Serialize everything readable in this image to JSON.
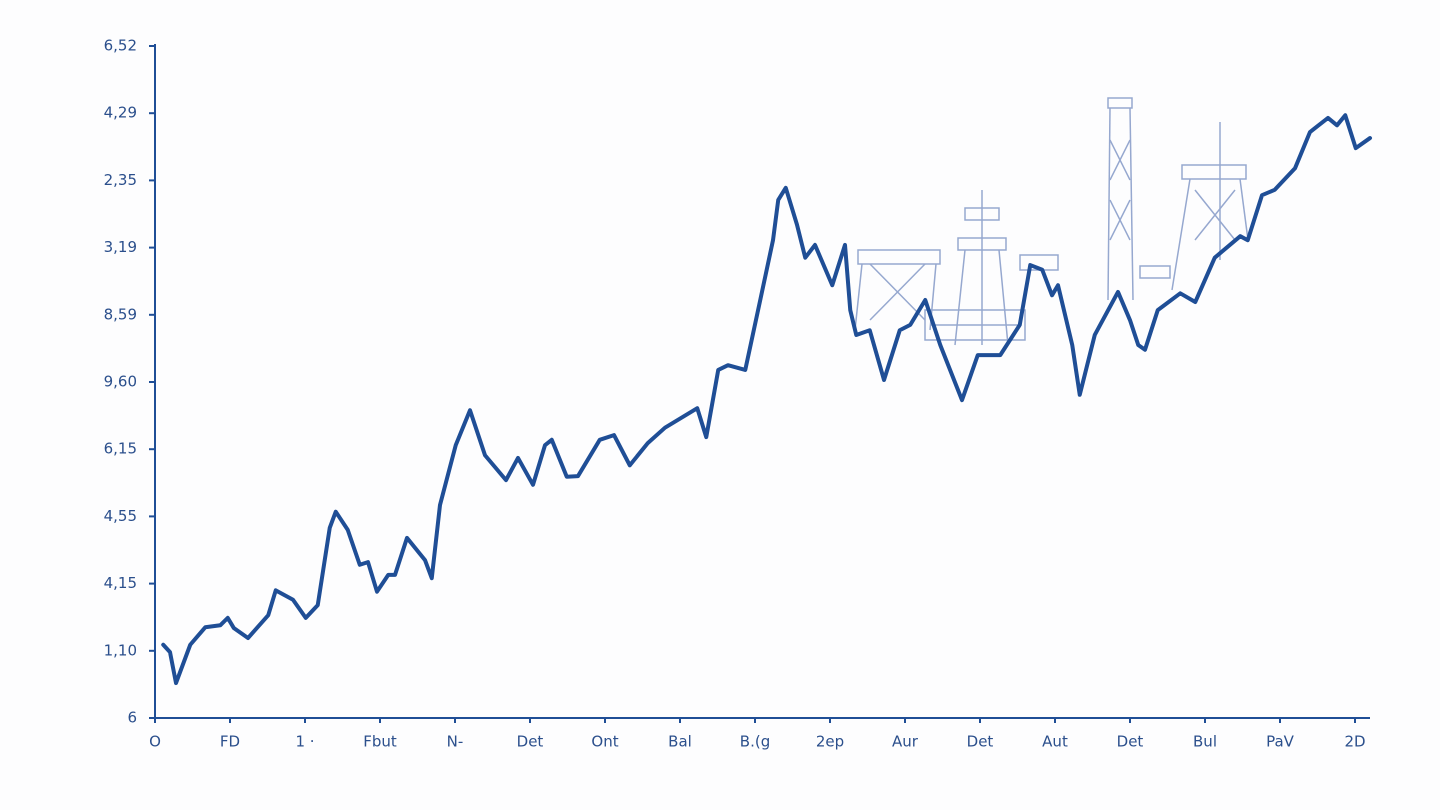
{
  "chart_data": {
    "type": "line",
    "xlim": [
      0,
      16.2
    ],
    "ylim": [
      0,
      10
    ],
    "xticks": [
      {
        "value": 0,
        "label": "O"
      },
      {
        "value": 1,
        "label": "FD"
      },
      {
        "value": 2,
        "label": "1 ·"
      },
      {
        "value": 3,
        "label": "Fbut"
      },
      {
        "value": 4,
        "label": "N-"
      },
      {
        "value": 5,
        "label": "Det"
      },
      {
        "value": 6,
        "label": "Ont"
      },
      {
        "value": 7,
        "label": "Bal"
      },
      {
        "value": 8,
        "label": "B.(g"
      },
      {
        "value": 9,
        "label": "2ep"
      },
      {
        "value": 10,
        "label": "Aur"
      },
      {
        "value": 11,
        "label": "Det"
      },
      {
        "value": 12,
        "label": "Aut"
      },
      {
        "value": 13,
        "label": "Det"
      },
      {
        "value": 14,
        "label": "Bul"
      },
      {
        "value": 15,
        "label": "PaV"
      },
      {
        "value": 16,
        "label": "2D"
      }
    ],
    "yticks": [
      {
        "value": 0,
        "label": "6"
      },
      {
        "value": 1,
        "label": "1,10"
      },
      {
        "value": 2,
        "label": "4,15"
      },
      {
        "value": 3,
        "label": "4,55"
      },
      {
        "value": 4,
        "label": "6,15"
      },
      {
        "value": 5,
        "label": "9,60"
      },
      {
        "value": 6,
        "label": "8,59"
      },
      {
        "value": 7,
        "label": "3,19"
      },
      {
        "value": 8,
        "label": "2,35"
      },
      {
        "value": 9,
        "label": "4,29"
      },
      {
        "value": 10,
        "label": "6,52"
      }
    ],
    "series": [
      {
        "color": "#1f4e96",
        "x": [
          0.11,
          0.2,
          0.28,
          0.47,
          0.67,
          0.87,
          0.97,
          1.05,
          1.24,
          1.51,
          1.61,
          1.84,
          2.01,
          2.17,
          2.33,
          2.41,
          2.57,
          2.73,
          2.84,
          2.96,
          3.11,
          3.2,
          3.36,
          3.6,
          3.69,
          3.8,
          4.01,
          4.2,
          4.4,
          4.68,
          4.84,
          5.04,
          5.2,
          5.29,
          5.49,
          5.64,
          5.93,
          6.12,
          6.33,
          6.57,
          6.8,
          7.23,
          7.35,
          7.51,
          7.64,
          7.87,
          8.07,
          8.24,
          8.31,
          8.41,
          8.56,
          8.67,
          8.8,
          9.03,
          9.2,
          9.27,
          9.35,
          9.53,
          9.72,
          9.93,
          10.07,
          10.27,
          10.47,
          10.76,
          10.97,
          11.27,
          11.53,
          11.67,
          11.83,
          11.96,
          12.04,
          12.23,
          12.33,
          12.53,
          12.84,
          13,
          13.11,
          13.2,
          13.37,
          13.67,
          13.87,
          14.13,
          14.47,
          14.57,
          14.76,
          14.93,
          15.2,
          15.4,
          15.64,
          15.76,
          15.87,
          16.01,
          16.2
        ],
        "values": [
          1.09,
          0.98,
          0.52,
          1.09,
          1.35,
          1.38,
          1.49,
          1.34,
          1.19,
          1.53,
          1.9,
          1.76,
          1.49,
          1.68,
          2.83,
          3.07,
          2.8,
          2.28,
          2.32,
          1.88,
          2.13,
          2.13,
          2.68,
          2.35,
          2.08,
          3.17,
          4.06,
          4.58,
          3.91,
          3.54,
          3.87,
          3.47,
          4.06,
          4.14,
          3.59,
          3.6,
          4.14,
          4.21,
          3.76,
          4.09,
          4.32,
          4.61,
          4.18,
          5.18,
          5.25,
          5.18,
          6.22,
          7.11,
          7.71,
          7.89,
          7.34,
          6.85,
          7.04,
          6.44,
          7.04,
          6.07,
          5.7,
          5.77,
          5.03,
          5.77,
          5.85,
          6.22,
          5.55,
          4.73,
          5.4,
          5.4,
          5.85,
          6.74,
          6.67,
          6.29,
          6.44,
          5.55,
          4.81,
          5.7,
          6.34,
          5.92,
          5.55,
          5.48,
          6.07,
          6.32,
          6.19,
          6.85,
          7.17,
          7.11,
          7.78,
          7.86,
          8.18,
          8.72,
          8.93,
          8.82,
          8.97,
          8.48,
          8.63
        ]
      }
    ]
  }
}
